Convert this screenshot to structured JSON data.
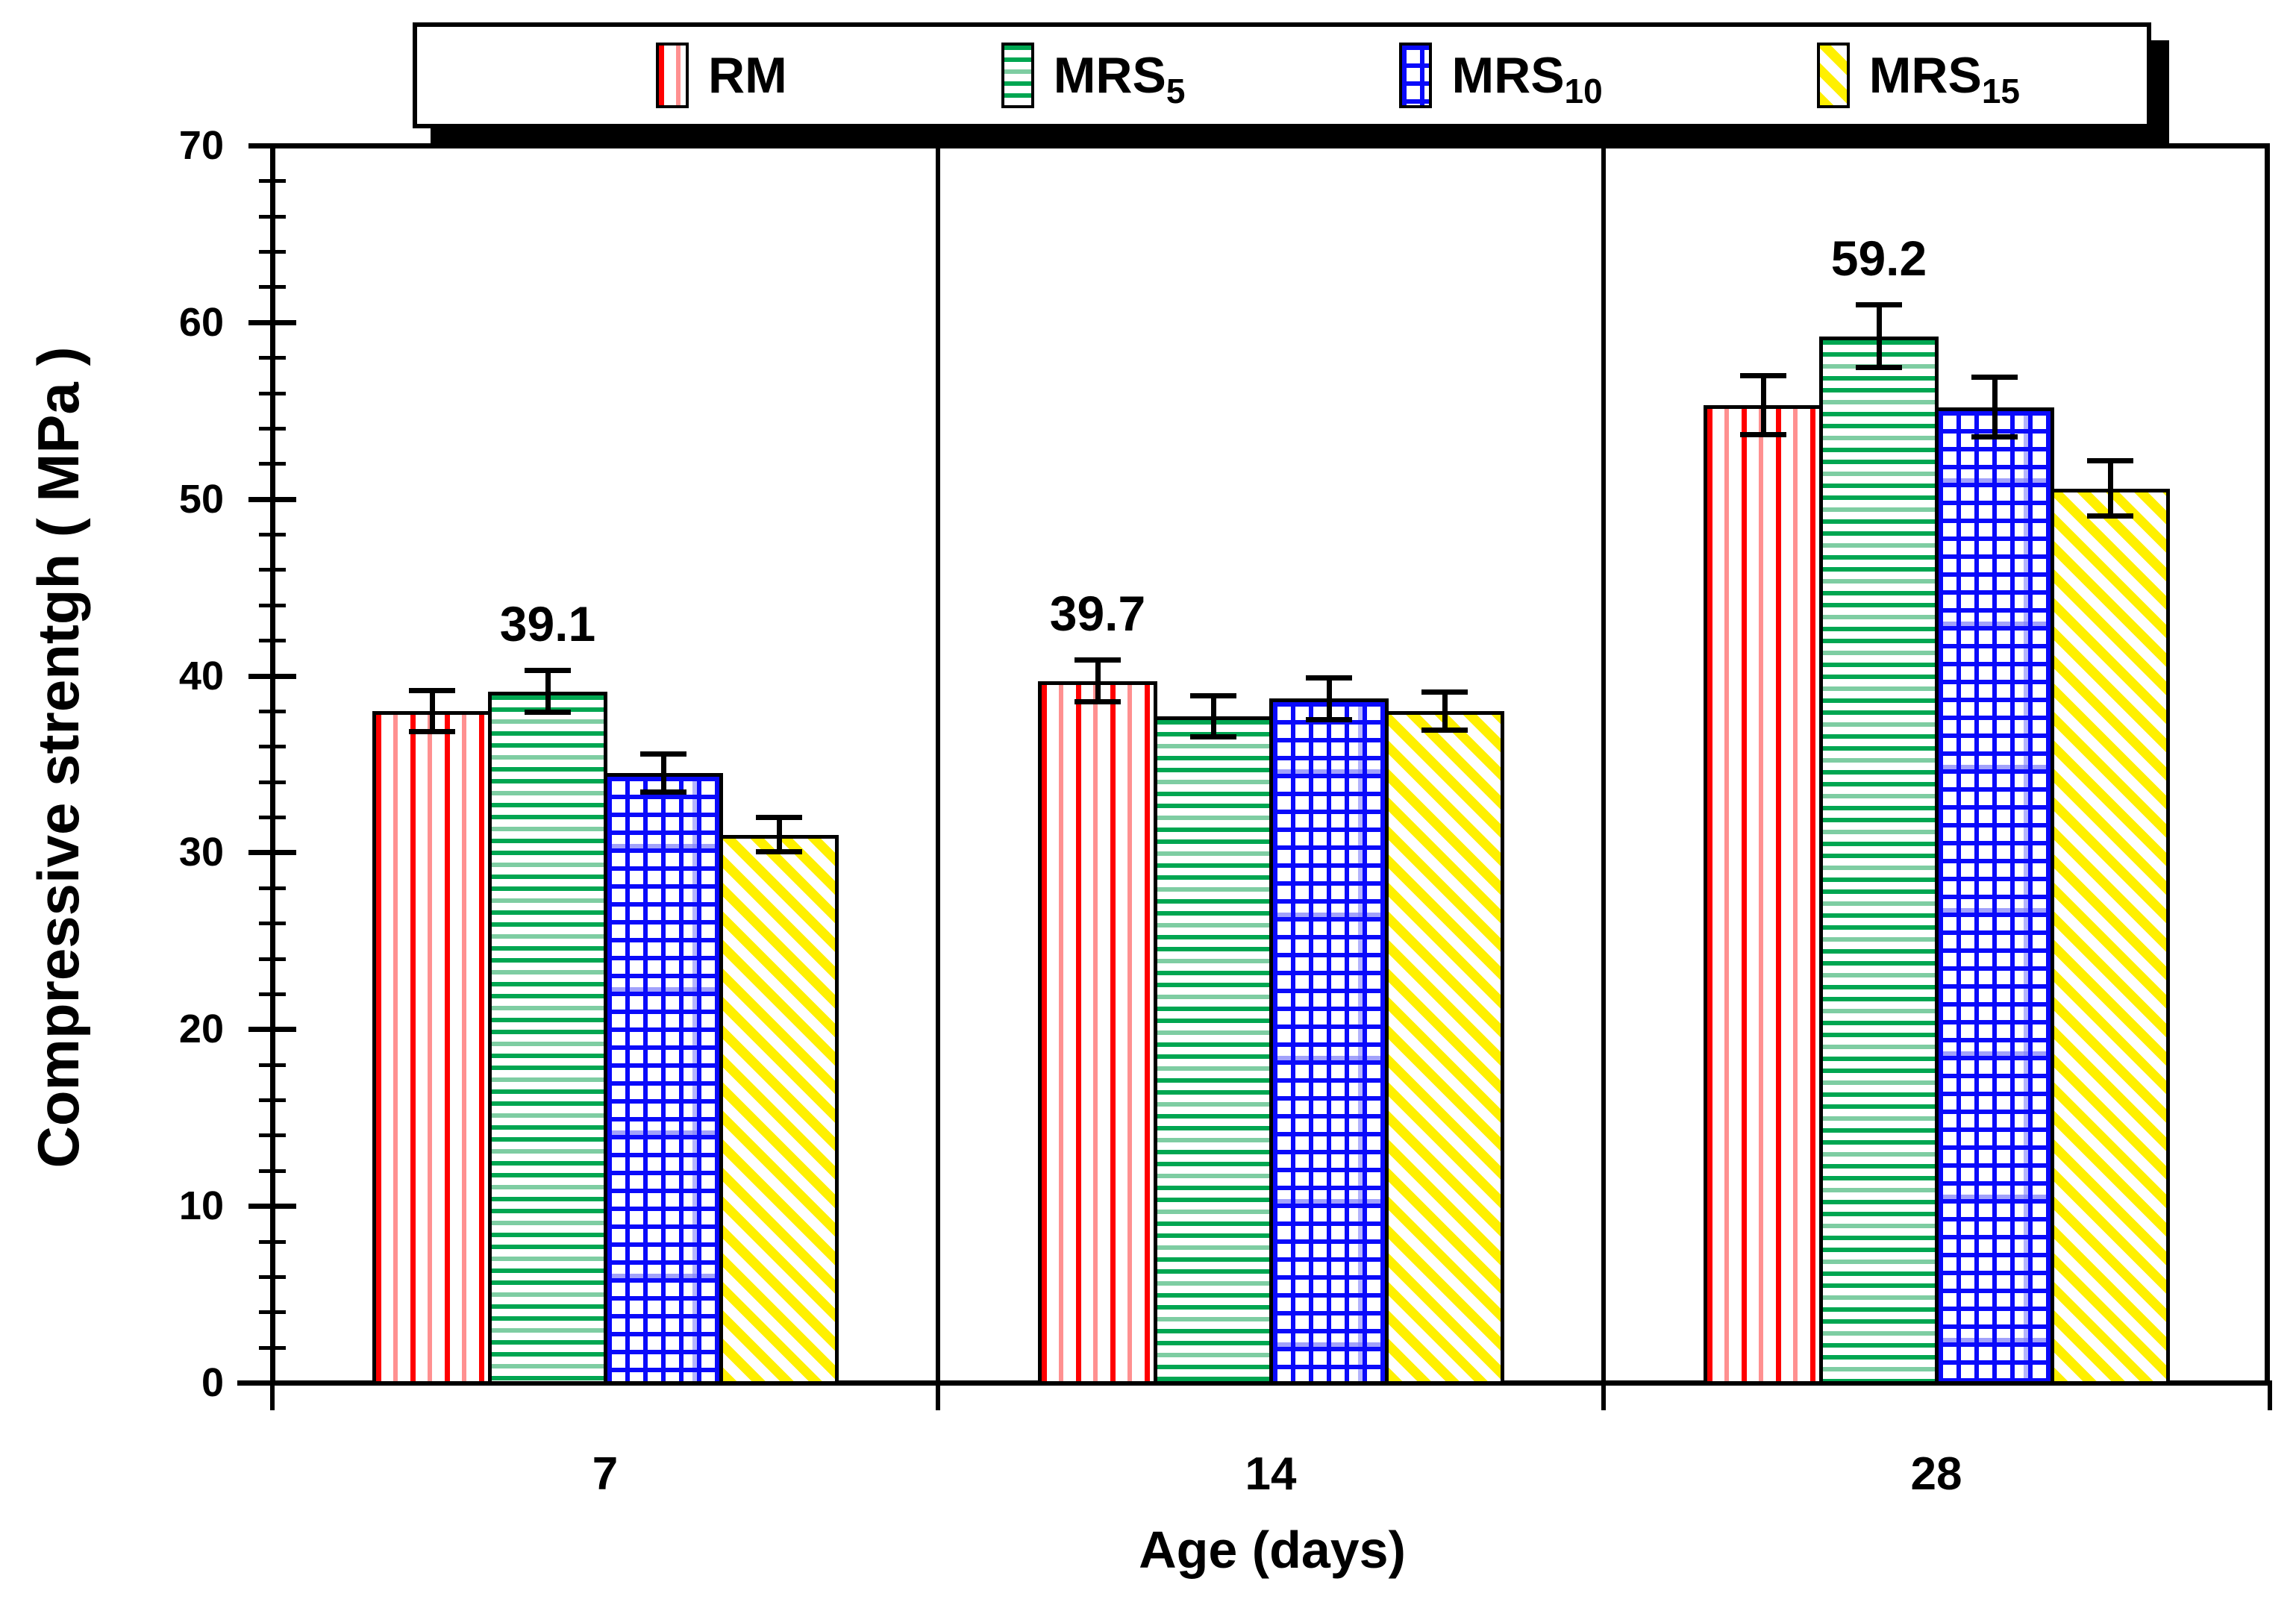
{
  "chart_data": {
    "type": "bar",
    "title": "",
    "xlabel": "Age (days)",
    "ylabel": "Compressive strentgh ( MPa )",
    "categories": [
      "7",
      "14",
      "28"
    ],
    "ylim": [
      0,
      70
    ],
    "y_ticks": [
      0,
      10,
      20,
      30,
      40,
      50,
      60,
      70
    ],
    "y_major_step": 10,
    "y_minor_step": 2,
    "grid": false,
    "legend_position": "top",
    "background_color": "#ffffff",
    "frame_color": "#000000",
    "series": [
      {
        "name": "RM",
        "label": "RM",
        "sub": "",
        "pattern": "red-vertical-stripes",
        "color": "#ff0000",
        "values": [
          38.0,
          39.7,
          55.3
        ],
        "errors": [
          1.2,
          1.2,
          1.7
        ]
      },
      {
        "name": "MRS5",
        "label": "MRS",
        "sub": "5",
        "pattern": "green-horizontal-stripes",
        "color": "#00a651",
        "values": [
          39.1,
          37.7,
          59.2
        ],
        "errors": [
          1.2,
          1.2,
          1.8
        ]
      },
      {
        "name": "MRS10",
        "label": "MRS",
        "sub": "10",
        "pattern": "blue-grid",
        "color": "#0a0afa",
        "values": [
          34.5,
          38.7,
          55.2
        ],
        "errors": [
          1.1,
          1.2,
          1.7
        ]
      },
      {
        "name": "MRS15",
        "label": "MRS",
        "sub": "15",
        "pattern": "yellow-diagonal-stripes",
        "color": "#fff000",
        "values": [
          31.0,
          38.0,
          50.6
        ],
        "errors": [
          1.0,
          1.1,
          1.6
        ]
      }
    ],
    "point_labels": [
      {
        "category": "7",
        "series": "MRS5",
        "text": "39.1"
      },
      {
        "category": "14",
        "series": "RM",
        "text": "39.7"
      },
      {
        "category": "28",
        "series": "MRS5",
        "text": "59.2"
      }
    ]
  }
}
